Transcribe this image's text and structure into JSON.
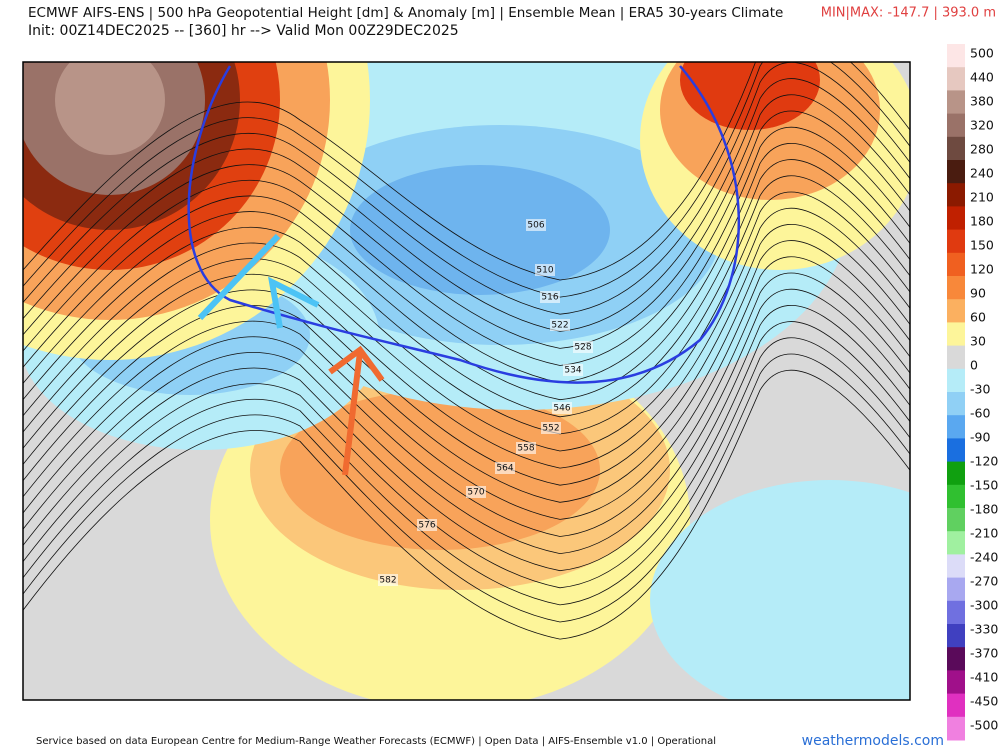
{
  "header": {
    "title": "ECMWF AIFS-ENS | 500 hPa Geopotential Height [dm] & Anomaly [m] | Ensemble Mean | ERA5 30-years Climate",
    "init": "Init: 00Z14DEC2025 -- [360] hr --> Valid Mon 00Z29DEC2025",
    "minmax": "MIN|MAX: -147.7 | 393.0 m"
  },
  "map": {
    "contour_labels": [
      506,
      510,
      516,
      522,
      528,
      534,
      546,
      552,
      558,
      564,
      570,
      576,
      582
    ]
  },
  "colorbar": {
    "labels": [
      500,
      440,
      380,
      320,
      280,
      240,
      210,
      180,
      150,
      120,
      90,
      60,
      30,
      0,
      -30,
      -60,
      -90,
      -120,
      -150,
      -180,
      -210,
      -240,
      -270,
      -300,
      -330,
      -370,
      -410,
      -450,
      -500
    ]
  },
  "footer": {
    "credit": "Service based on data European Centre for Medium-Range Weather Forecasts (ECMWF) | Open Data | AIFS-Ensemble v1.0 | Operational",
    "brand": "weathermodels.com"
  }
}
